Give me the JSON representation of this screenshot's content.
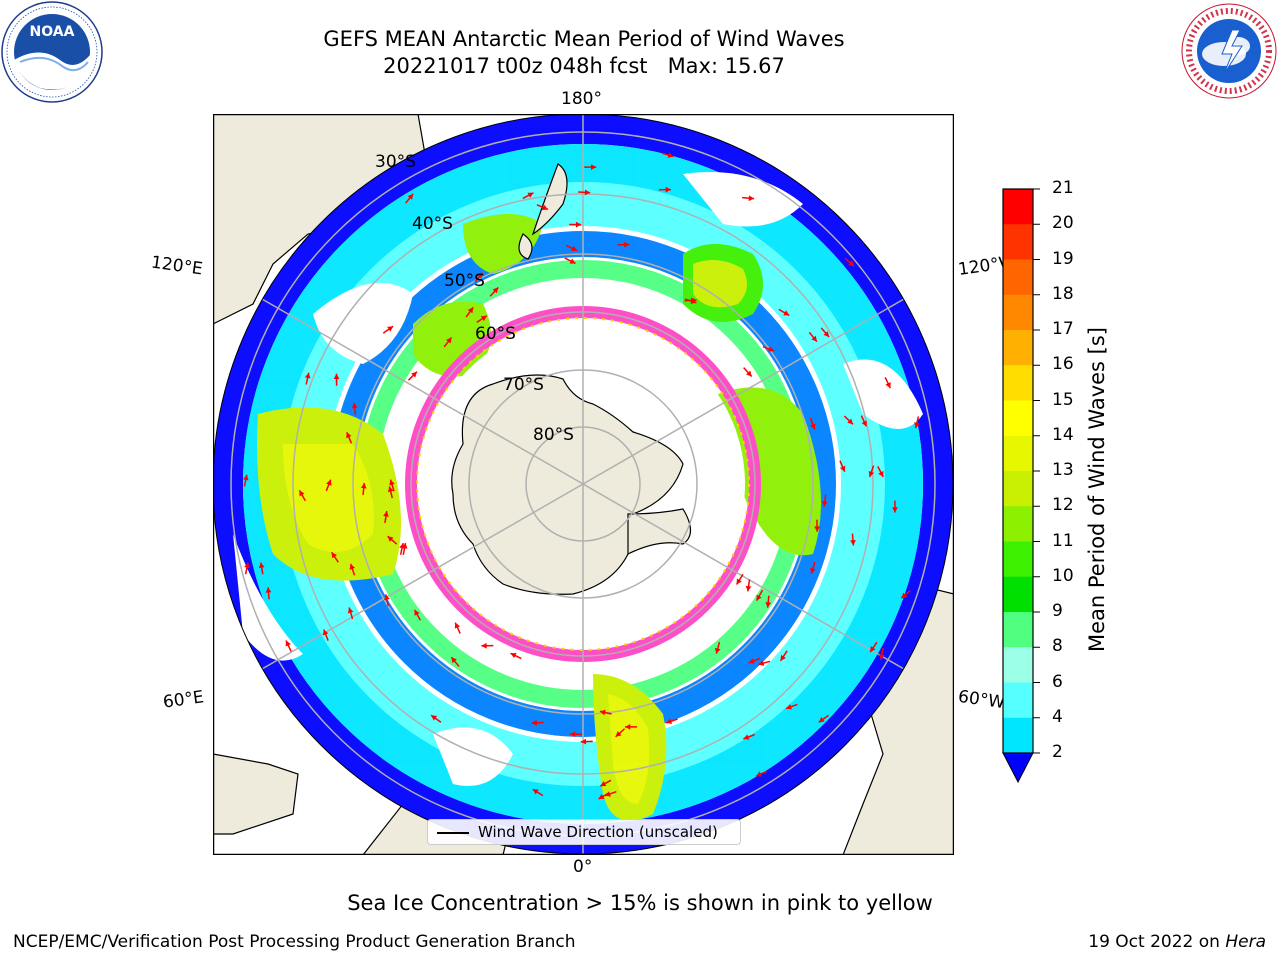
{
  "title": {
    "line1": "GEFS MEAN Antarctic Mean Period of Wind Waves",
    "line2": "20221017 t00z 048h fcst   Max: 15.67"
  },
  "map": {
    "projection": "south-polar-stereographic",
    "land_color": "#efebdc",
    "ocean_no_data_color": "#ffffff",
    "longitude_labels": {
      "top": "180°",
      "bottom": "0°",
      "left_upper": "120°E",
      "left_lower": "60°E",
      "right_upper": "120°W",
      "right_lower": "60°W"
    },
    "latitude_labels": [
      "30°S",
      "40°S",
      "50°S",
      "60°S",
      "70°S",
      "80°S"
    ],
    "arrow_color": "#ff0000",
    "sea_ice_colors": [
      "#ff4fc8",
      "#ffd000"
    ]
  },
  "legend": {
    "label": "Wind Wave Direction (unscaled)",
    "icon": "black-line"
  },
  "colorbar": {
    "label": "Mean Period of Wind Waves [s]",
    "ticks": [
      "21",
      "20",
      "19",
      "18",
      "17",
      "16",
      "15",
      "14",
      "13",
      "12",
      "11",
      "10",
      "9",
      "8",
      "6",
      "4",
      "2"
    ],
    "colors": [
      "#ff0000",
      "#ff3300",
      "#ff6600",
      "#ff8800",
      "#ffb000",
      "#ffdd00",
      "#ffff00",
      "#e6f700",
      "#c8f000",
      "#8cf000",
      "#3cf000",
      "#00e000",
      "#50ff80",
      "#9bffe6",
      "#55ffff",
      "#00e6ff",
      "#0080ff",
      "#0000ff"
    ],
    "extend": "min"
  },
  "logos": {
    "left": "noaa-logo",
    "right": "nws-logo"
  },
  "footer": {
    "ice_note": "Sea Ice Concentration > 15% is shown in pink to yellow",
    "branch": "NCEP/EMC/Verification Post Processing Product Generation Branch",
    "date_prefix": "19 Oct 2022 on ",
    "date_machine": "Hera"
  }
}
